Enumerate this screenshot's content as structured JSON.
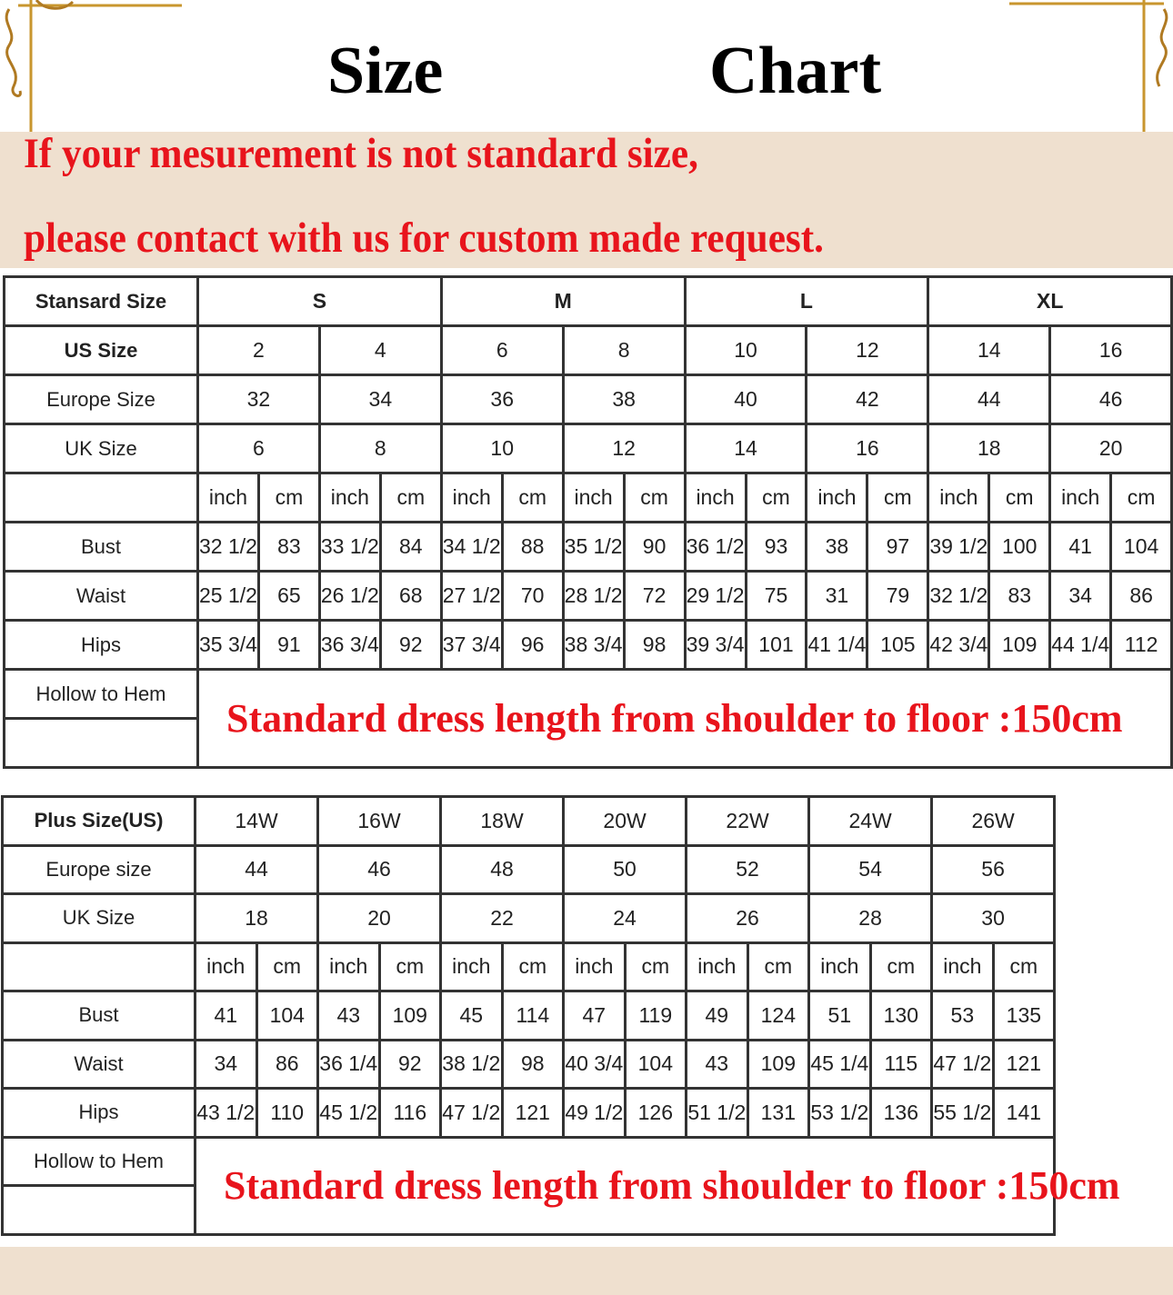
{
  "header": {
    "title_left": "Size",
    "title_right": "Chart"
  },
  "notice": {
    "line1": "If your mesurement is not standard size,",
    "line2": "please contact with us for custom made request."
  },
  "colors": {
    "accent_red": "#e8141c",
    "band_beige": "#efe0cf",
    "ornament_gold": "#c8962e"
  },
  "standard_table": {
    "header_label": "Stansard Size",
    "groups": [
      "S",
      "M",
      "L",
      "XL"
    ],
    "us_label": "US Size",
    "us": [
      "2",
      "4",
      "6",
      "8",
      "10",
      "12",
      "14",
      "16"
    ],
    "eu_label": "Europe Size",
    "eu": [
      "32",
      "34",
      "36",
      "38",
      "40",
      "42",
      "44",
      "46"
    ],
    "uk_label": "UK Size",
    "uk": [
      "6",
      "8",
      "10",
      "12",
      "14",
      "16",
      "18",
      "20"
    ],
    "unit_inch": "inch",
    "unit_cm": "cm",
    "rows": [
      {
        "label": "Bust",
        "values": [
          "32 1/2",
          "83",
          "33 1/2",
          "84",
          "34 1/2",
          "88",
          "35 1/2",
          "90",
          "36 1/2",
          "93",
          "38",
          "97",
          "39 1/2",
          "100",
          "41",
          "104"
        ]
      },
      {
        "label": "Waist",
        "values": [
          "25 1/2",
          "65",
          "26 1/2",
          "68",
          "27 1/2",
          "70",
          "28 1/2",
          "72",
          "29 1/2",
          "75",
          "31",
          "79",
          "32 1/2",
          "83",
          "34",
          "86"
        ]
      },
      {
        "label": "Hips",
        "values": [
          "35 3/4",
          "91",
          "36 3/4",
          "92",
          "37 3/4",
          "96",
          "38 3/4",
          "98",
          "39 3/4",
          "101",
          "41 1/4",
          "105",
          "42 3/4",
          "109",
          "44 1/4",
          "112"
        ]
      }
    ],
    "hollow_label": "Hollow to Hem",
    "length_note": "Standard dress length from shoulder to floor :150cm"
  },
  "plus_table": {
    "us_label": "Plus Size(US)",
    "us": [
      "14W",
      "16W",
      "18W",
      "20W",
      "22W",
      "24W",
      "26W"
    ],
    "eu_label": "Europe size",
    "eu": [
      "44",
      "46",
      "48",
      "50",
      "52",
      "54",
      "56"
    ],
    "uk_label": "UK Size",
    "uk": [
      "18",
      "20",
      "22",
      "24",
      "26",
      "28",
      "30"
    ],
    "unit_inch": "inch",
    "unit_cm": "cm",
    "rows": [
      {
        "label": "Bust",
        "values": [
          "41",
          "104",
          "43",
          "109",
          "45",
          "114",
          "47",
          "119",
          "49",
          "124",
          "51",
          "130",
          "53",
          "135"
        ]
      },
      {
        "label": "Waist",
        "values": [
          "34",
          "86",
          "36 1/4",
          "92",
          "38 1/2",
          "98",
          "40 3/4",
          "104",
          "43",
          "109",
          "45 1/4",
          "115",
          "47 1/2",
          "121"
        ]
      },
      {
        "label": "Hips",
        "values": [
          "43 1/2",
          "110",
          "45 1/2",
          "116",
          "47 1/2",
          "121",
          "49 1/2",
          "126",
          "51 1/2",
          "131",
          "53 1/2",
          "136",
          "55 1/2",
          "141"
        ]
      }
    ],
    "hollow_label": "Hollow to Hem",
    "length_note": "Standard dress length from shoulder to floor :150cm"
  }
}
